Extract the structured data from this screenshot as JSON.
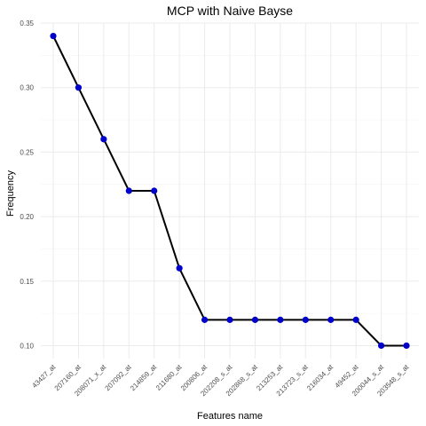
{
  "chart_data": {
    "type": "line",
    "title": "MCP with Naive Bayse",
    "xlabel": "Features name",
    "ylabel": "Frequency",
    "categories": [
      "43427_at",
      "207160_at",
      "208071_x_at",
      "207092_at",
      "214859_at",
      "211680_at",
      "200806_at",
      "202208_s_at",
      "202868_s_at",
      "213253_at",
      "213723_s_at",
      "216034_at",
      "49452_at",
      "200044_s_at",
      "203548_s_at"
    ],
    "values": [
      0.34,
      0.3,
      0.26,
      0.22,
      0.22,
      0.16,
      0.12,
      0.12,
      0.12,
      0.12,
      0.12,
      0.12,
      0.12,
      0.1,
      0.1
    ],
    "ylim": [
      0.09,
      0.35
    ],
    "yticks": [
      0.1,
      0.15,
      0.2,
      0.25,
      0.3,
      0.35
    ],
    "ytick_labels": [
      "0.10",
      "0.15",
      "0.20",
      "0.25",
      "0.30",
      "0.35"
    ],
    "grid": true,
    "line_color": "#000000",
    "point_color": "#0000cc"
  }
}
